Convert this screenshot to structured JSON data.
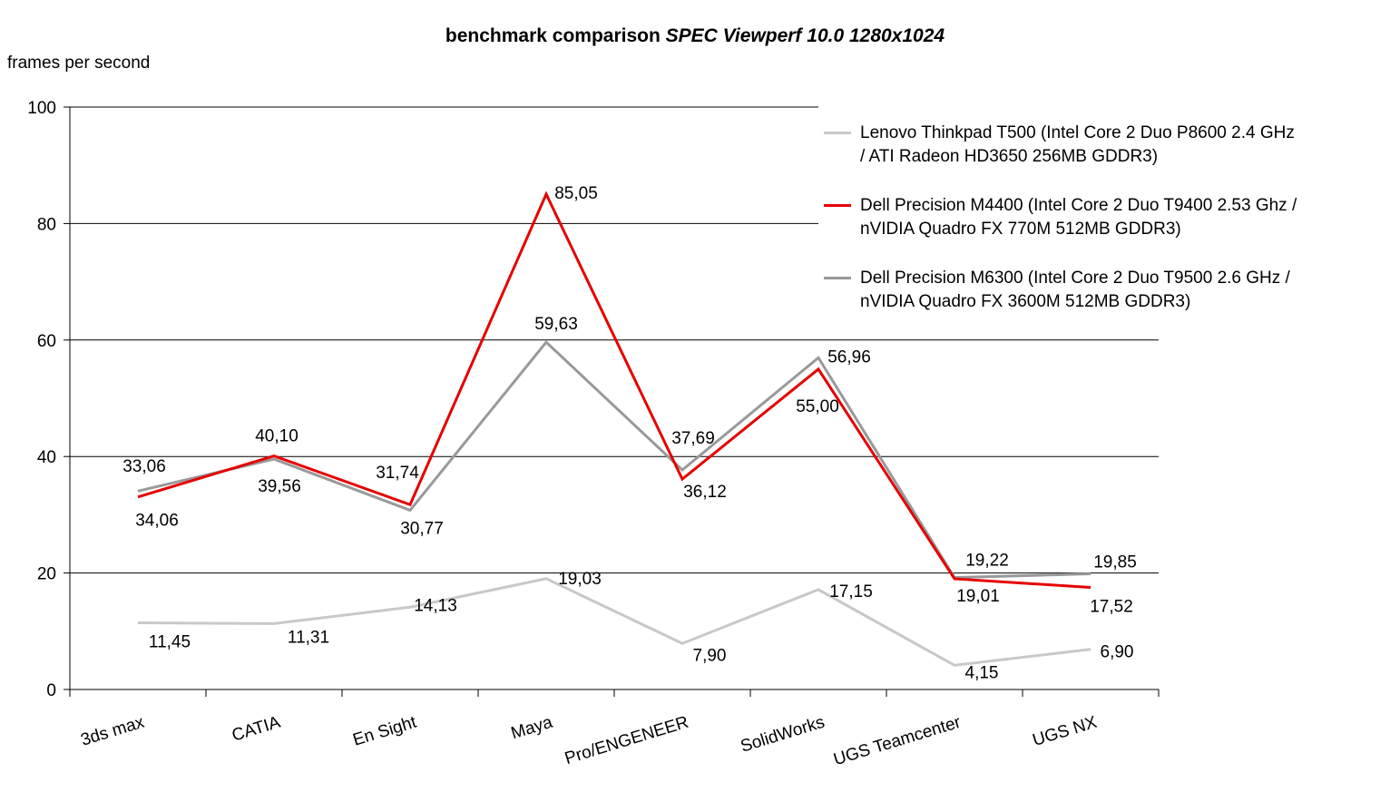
{
  "title": {
    "main": "benchmark comparison",
    "emphasis": "SPEC Viewperf 10.0 1280x1024"
  },
  "y_axis_title": "frames per second",
  "chart_data": {
    "type": "line",
    "title": "benchmark comparison SPEC Viewperf 10.0 1280x1024",
    "xlabel": "",
    "ylabel": "frames per second",
    "ylim": [
      0,
      100
    ],
    "yticks": [
      0,
      20,
      40,
      60,
      80,
      100
    ],
    "grid": true,
    "legend_position": "top-right-overlay",
    "axis_color": "#000000",
    "label_decimal_style": "comma",
    "categories": [
      "3ds max",
      "CATIA",
      "En Sight",
      "Maya",
      "Pro/ENGENEER",
      "SolidWorks",
      "UGS Teamcenter",
      "UGS NX"
    ],
    "series": [
      {
        "name": "Lenovo Thinkpad T500 (Intel Core 2 Duo P8600 2.4 GHz / ATI Radeon HD3650 256MB GDDR3)",
        "legend_lines": [
          "Lenovo Thinkpad T500 (Intel Core 2 Duo P8600 2.4 GHz",
          "/ ATI Radeon HD3650 256MB GDDR3)"
        ],
        "color": "#c8c8c8",
        "values": [
          11.45,
          11.31,
          14.13,
          19.03,
          7.9,
          17.15,
          4.15,
          6.9
        ],
        "labels": [
          "11,45",
          "11,31",
          "14,13",
          "19,03",
          "7,90",
          "17,15",
          "4,15",
          "6,90"
        ],
        "label_offsets": [
          [
            35,
            20
          ],
          [
            38,
            14
          ],
          [
            28,
            -3
          ],
          [
            37,
            -1
          ],
          [
            30,
            12
          ],
          [
            36,
            1
          ],
          [
            30,
            7
          ],
          [
            29,
            2
          ]
        ]
      },
      {
        "name": "Dell Precision M4400 (Intel Core 2 Duo T9400 2.53 Ghz / nVIDIA Quadro FX 770M 512MB GDDR3)",
        "legend_lines": [
          "Dell Precision M4400 (Intel Core 2 Duo T9400 2.53 Ghz /",
          "nVIDIA Quadro FX 770M 512MB GDDR3)"
        ],
        "color": "#e60000",
        "values": [
          33.06,
          40.1,
          31.74,
          85.05,
          36.12,
          55.0,
          19.01,
          17.52
        ],
        "labels": [
          "33,06",
          "40,10",
          "31,74",
          "85,05",
          "36,12",
          "55,00",
          "19,01",
          "17,52"
        ],
        "label_offsets": [
          [
            7,
            -35
          ],
          [
            3,
            -23
          ],
          [
            -14,
            -36
          ],
          [
            33,
            -2
          ],
          [
            25,
            13
          ],
          [
            -1,
            40
          ],
          [
            26,
            18
          ],
          [
            23,
            20
          ]
        ]
      },
      {
        "name": "Dell Precision M6300 (Intel Core 2 Duo T9500 2.6 GHz / nVIDIA Quadro FX 3600M 512MB GDDR3)",
        "legend_lines": [
          "Dell Precision M6300 (Intel Core 2 Duo T9500 2.6 GHz /",
          "nVIDIA Quadro FX 3600M 512MB GDDR3)"
        ],
        "color": "#999999",
        "values": [
          34.06,
          39.56,
          30.77,
          59.63,
          37.69,
          56.96,
          19.22,
          19.85
        ],
        "labels": [
          "34,06",
          "39,56",
          "30,77",
          "59,63",
          "37,69",
          "56,96",
          "19,22",
          "19,85"
        ],
        "label_offsets": [
          [
            21,
            31
          ],
          [
            6,
            29
          ],
          [
            13,
            19
          ],
          [
            11,
            -21
          ],
          [
            12,
            -36
          ],
          [
            34,
            -2
          ],
          [
            36,
            -20
          ],
          [
            27,
            -14
          ]
        ]
      }
    ]
  }
}
